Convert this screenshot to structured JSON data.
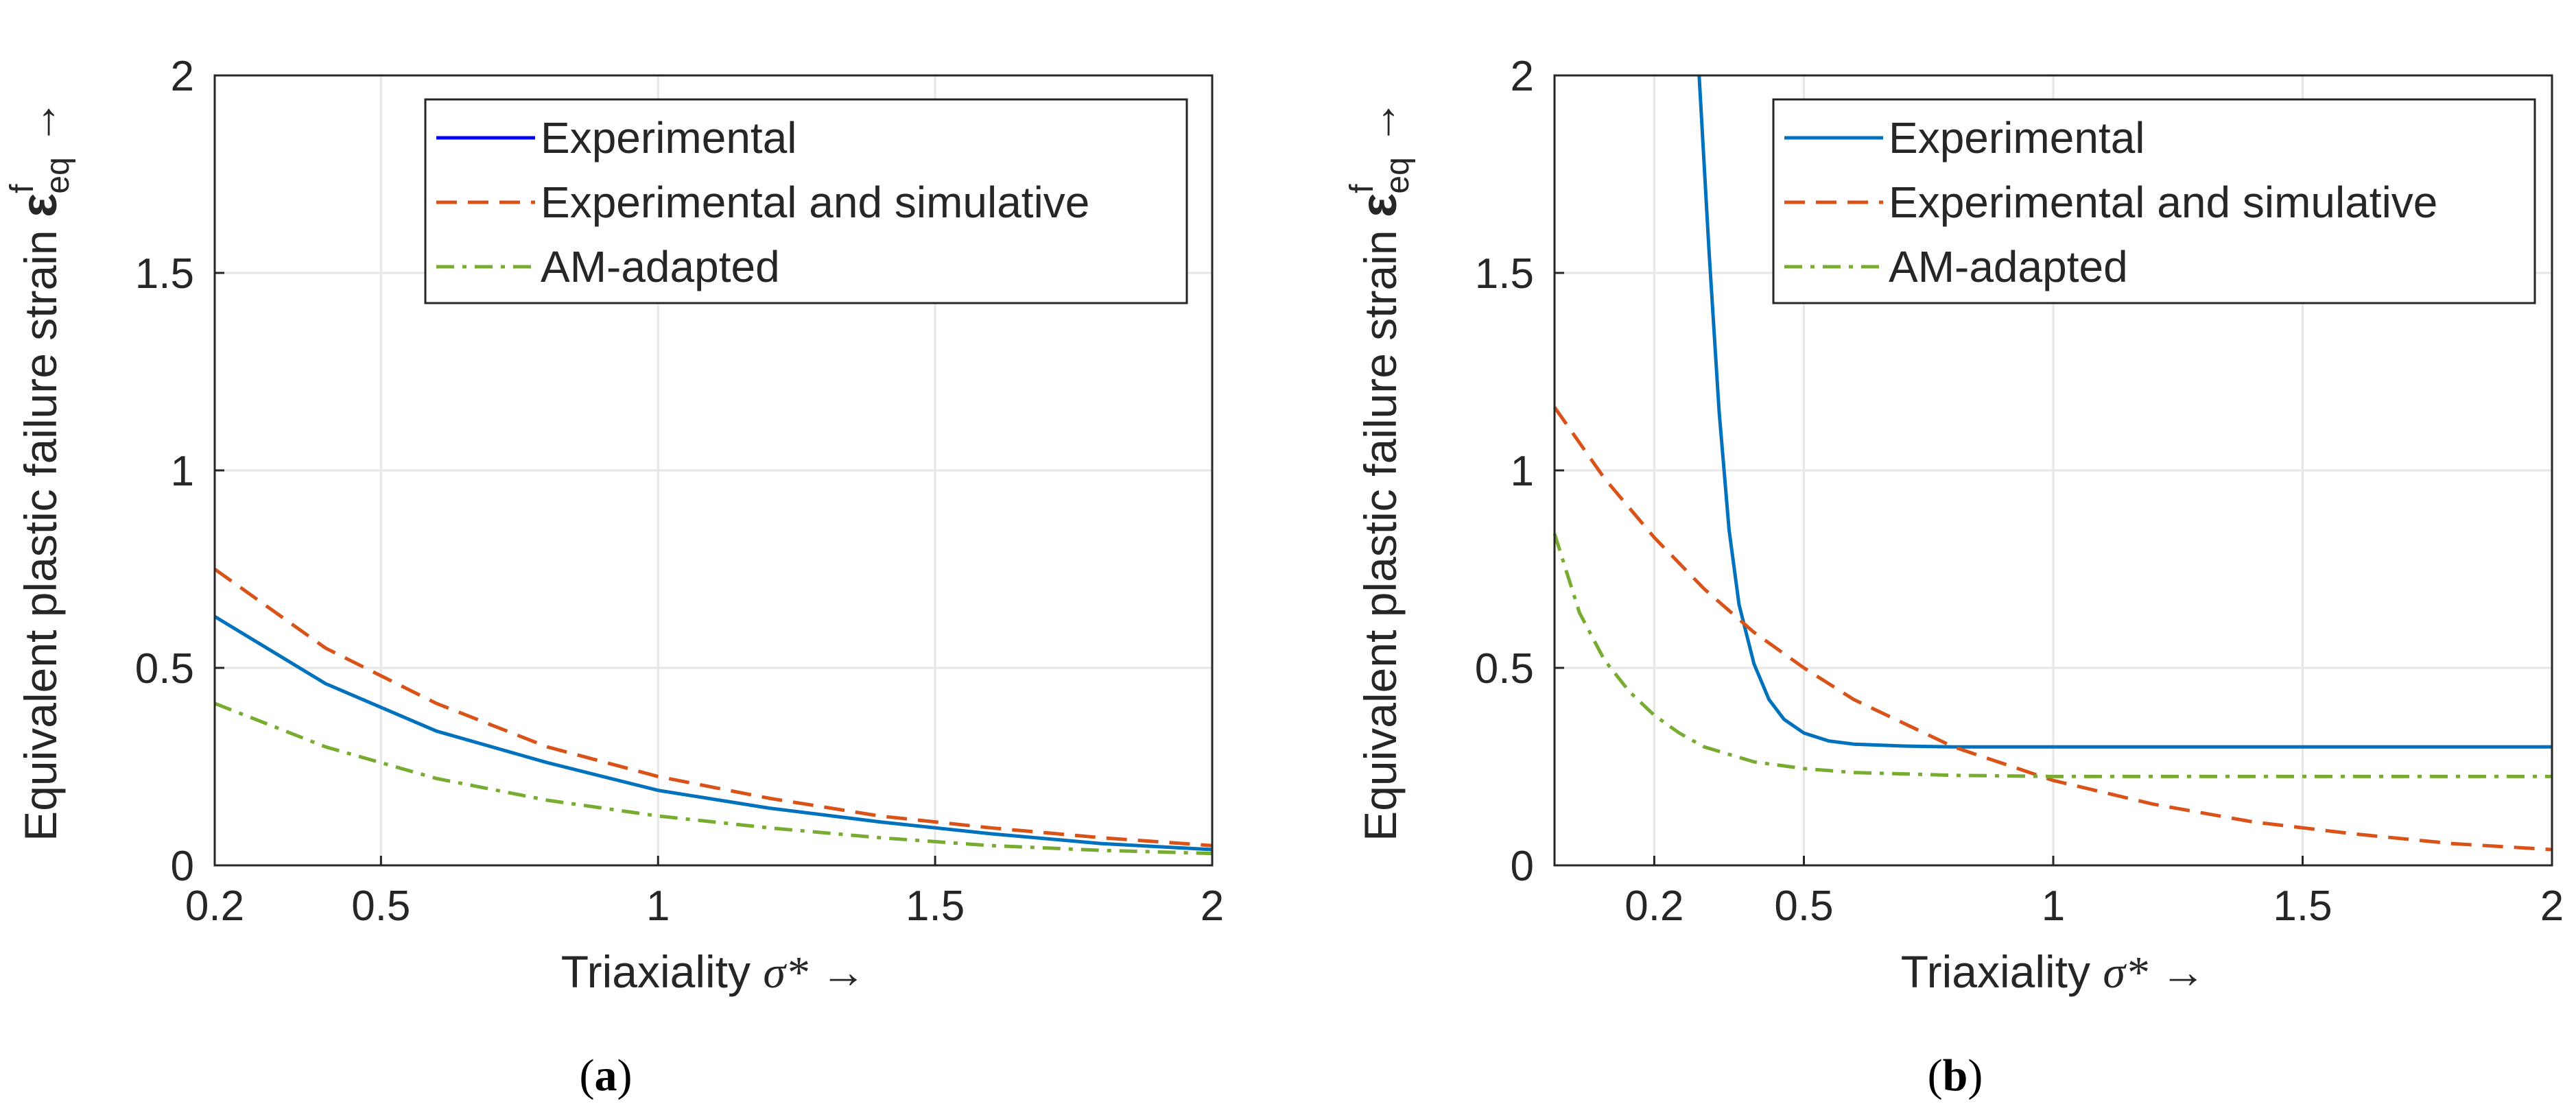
{
  "chart_data": [
    {
      "type": "line",
      "caption_letter": "a",
      "xlabel_text": "Triaxiality",
      "xlabel_symbol": "σ*",
      "ylabel_text": "Equivalent plastic failure strain",
      "ylabel_symbol": "ε",
      "ylabel_sup": "f",
      "ylabel_sub": "eq",
      "arrow": "→",
      "xlim": [
        0.2,
        2.0
      ],
      "ylim": [
        0,
        2
      ],
      "xticks": [
        0.2,
        0.5,
        1.0,
        1.5,
        2.0
      ],
      "xtick_labels": [
        "0.2",
        "0.5",
        "1",
        "1.5",
        "2"
      ],
      "yticks": [
        0,
        0.5,
        1.0,
        1.5,
        2.0
      ],
      "ytick_labels": [
        "0",
        "0.5",
        "1",
        "1.5",
        "2"
      ],
      "grid": true,
      "legend_position": "top-right",
      "x": [
        0.2,
        0.4,
        0.6,
        0.8,
        1.0,
        1.2,
        1.4,
        1.6,
        1.8,
        2.0
      ],
      "series": [
        {
          "name": "Experimental",
          "legend_color": "#0000ff",
          "color": "#0072bd",
          "style": "solid",
          "values": [
            0.63,
            0.46,
            0.34,
            0.26,
            0.19,
            0.145,
            0.11,
            0.08,
            0.055,
            0.04
          ]
        },
        {
          "name": "Experimental and simulative",
          "color": "#d95319",
          "style": "dashed",
          "values": [
            0.75,
            0.55,
            0.41,
            0.3,
            0.225,
            0.17,
            0.125,
            0.095,
            0.07,
            0.05
          ]
        },
        {
          "name": "AM-adapted",
          "color": "#77ac30",
          "style": "dashdot",
          "values": [
            0.41,
            0.3,
            0.22,
            0.165,
            0.125,
            0.095,
            0.07,
            0.05,
            0.038,
            0.03
          ]
        }
      ]
    },
    {
      "type": "line",
      "caption_letter": "b",
      "xlabel_text": "Triaxiality",
      "xlabel_symbol": "σ*",
      "ylabel_text": "Equivalent plastic failure strain",
      "ylabel_symbol": "ε",
      "ylabel_sup": "f",
      "ylabel_sub": "eq",
      "arrow": "→",
      "xlim": [
        0.0,
        2.0
      ],
      "ylim": [
        0,
        2
      ],
      "xticks": [
        0.2,
        0.5,
        1.0,
        1.5,
        2.0
      ],
      "xtick_labels": [
        "0.2",
        "0.5",
        "1",
        "1.5",
        "2"
      ],
      "yticks": [
        0,
        0.5,
        1.0,
        1.5,
        2.0
      ],
      "ytick_labels": [
        "0",
        "0.5",
        "1",
        "1.5",
        "2"
      ],
      "grid": true,
      "legend_position": "top-right",
      "series": [
        {
          "name": "Experimental",
          "color": "#0072bd",
          "style": "solid",
          "x": [
            0.29,
            0.31,
            0.33,
            0.35,
            0.37,
            0.4,
            0.43,
            0.46,
            0.5,
            0.55,
            0.6,
            0.7,
            0.8,
            1.0,
            1.5,
            2.0
          ],
          "values": [
            2.0,
            1.55,
            1.15,
            0.85,
            0.66,
            0.51,
            0.42,
            0.37,
            0.335,
            0.315,
            0.307,
            0.302,
            0.3,
            0.3,
            0.3,
            0.3
          ]
        },
        {
          "name": "Experimental and simulative",
          "color": "#d95319",
          "style": "dashed",
          "x": [
            0.0,
            0.1,
            0.2,
            0.3,
            0.4,
            0.5,
            0.6,
            0.8,
            1.0,
            1.2,
            1.4,
            1.6,
            1.8,
            2.0
          ],
          "values": [
            1.16,
            0.98,
            0.83,
            0.7,
            0.59,
            0.5,
            0.42,
            0.3,
            0.215,
            0.155,
            0.11,
            0.08,
            0.055,
            0.04
          ]
        },
        {
          "name": "AM-adapted",
          "color": "#77ac30",
          "style": "dashdot",
          "x": [
            0.0,
            0.05,
            0.1,
            0.15,
            0.2,
            0.25,
            0.3,
            0.4,
            0.5,
            0.6,
            0.8,
            1.0,
            1.5,
            2.0
          ],
          "values": [
            0.84,
            0.64,
            0.52,
            0.44,
            0.38,
            0.335,
            0.3,
            0.262,
            0.245,
            0.235,
            0.228,
            0.225,
            0.225,
            0.225
          ]
        }
      ]
    }
  ]
}
